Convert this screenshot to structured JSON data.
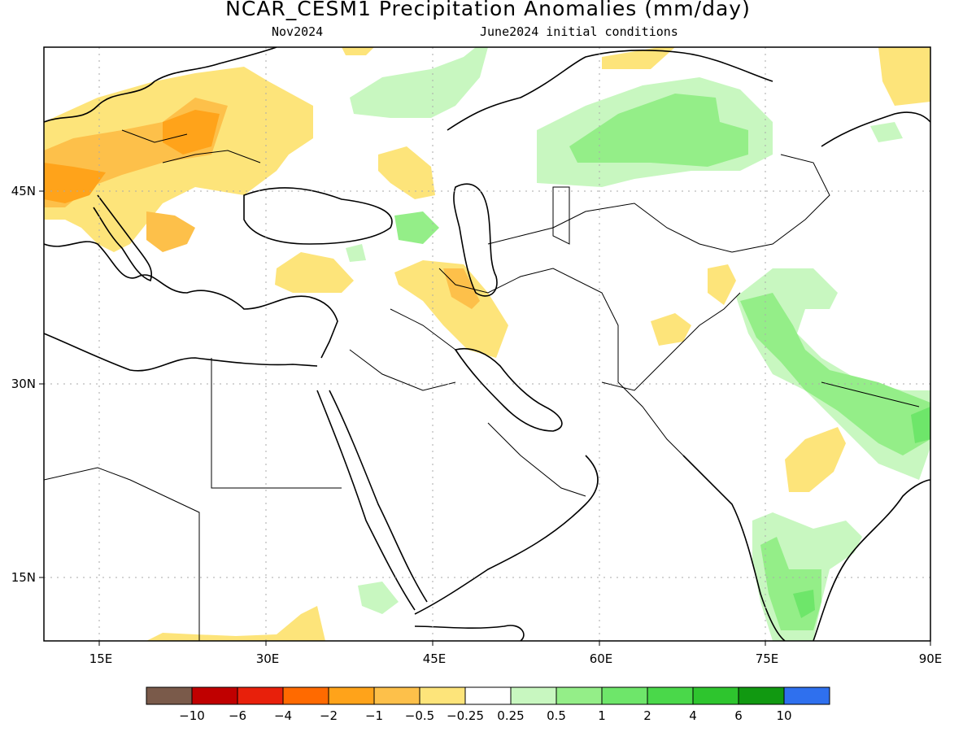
{
  "title": "NCAR_CESM1 Precipitation Anomalies (mm/day)",
  "forecast_month": "Nov2024",
  "initial_conditions": "June2024 initial conditions",
  "map": {
    "lon_ticks": [
      "15E",
      "30E",
      "45E",
      "60E",
      "75E",
      "90E"
    ],
    "lat_ticks": [
      "45N",
      "30N",
      "15N"
    ],
    "lon_range": [
      10,
      90
    ],
    "lat_range": [
      10,
      56
    ]
  },
  "colorbar": {
    "colors": [
      "#7a5a4a",
      "#c00000",
      "#e8200b",
      "#ff6a00",
      "#ffa31a",
      "#fdc04a",
      "#fde47a",
      "#ffffff",
      "#c8f7c0",
      "#94ee88",
      "#6ee66a",
      "#4ad84a",
      "#2ec52e",
      "#119911",
      "#2f70ee"
    ],
    "labels": [
      "-10",
      "-6",
      "-4",
      "-2",
      "-1",
      "-0.5",
      "-0.25",
      "0.25",
      "0.5",
      "1",
      "2",
      "4",
      "6",
      "10"
    ]
  }
}
